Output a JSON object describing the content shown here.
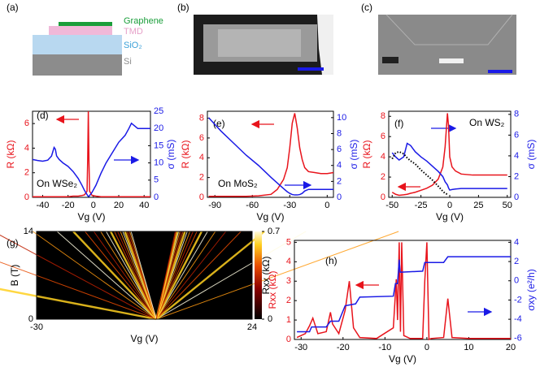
{
  "panels": {
    "a": {
      "label": "(a)",
      "layers": [
        "Graphene",
        "TMD",
        "SiO₂",
        "Si"
      ]
    },
    "b": {
      "label": "(b)"
    },
    "c": {
      "label": "(c)"
    }
  },
  "chart_data": [
    {
      "type": "line",
      "panel": "(d)",
      "annotation": "On WSe₂",
      "xlabel": "Vg (V)",
      "ylabel": "R (kΩ)",
      "y2label": "σ (mS)",
      "xlim": [
        -48,
        45
      ],
      "xticks": [
        -40,
        -20,
        0,
        20,
        40
      ],
      "ylim": [
        0,
        7
      ],
      "yticks": [
        0,
        2,
        4,
        6
      ],
      "y2lim": [
        0,
        25
      ],
      "y2ticks": [
        0,
        5,
        10,
        15,
        20,
        25
      ],
      "x": [
        -48,
        -44,
        -40,
        -36,
        -33,
        -31,
        -30,
        -29,
        -27,
        -24,
        -20,
        -16,
        -12,
        -9,
        -7,
        -5,
        -4.5,
        -4,
        -3.5,
        -3,
        -1,
        2,
        6,
        10,
        15,
        20,
        25,
        28,
        30,
        35,
        40,
        45
      ],
      "series": [
        {
          "name": "R",
          "color": "#e8141c",
          "values": [
            0.05,
            0.05,
            0.05,
            0.05,
            0.05,
            0.05,
            0.05,
            0.05,
            0.05,
            0.05,
            0.05,
            0.1,
            0.1,
            0.15,
            0.2,
            0.5,
            3,
            7,
            3,
            0.5,
            0.15,
            0.1,
            0.05,
            0.05,
            0.05,
            0.05,
            0.05,
            0.05,
            0.05,
            0.05,
            0.05,
            0.05
          ]
        },
        {
          "name": "σ",
          "color": "#1a1ae6",
          "axis": "y2",
          "values": [
            11,
            10.7,
            10.5,
            10.8,
            12,
            14.5,
            14,
            12,
            11,
            10,
            9,
            7.5,
            5.5,
            3.5,
            2,
            0.8,
            0.5,
            0.3,
            0.3,
            0.5,
            1.5,
            3.5,
            7,
            10,
            13,
            16,
            18,
            20,
            21.5,
            20,
            20,
            20
          ]
        }
      ]
    },
    {
      "type": "line",
      "panel": "(e)",
      "annotation": "On MoS₂",
      "xlabel": "Vg (V)",
      "ylabel": "R (kΩ)",
      "y2label": "σ (mS)",
      "xlim": [
        -96,
        5
      ],
      "xticks": [
        -90,
        -60,
        -30,
        0
      ],
      "ylim": [
        0,
        8.7
      ],
      "yticks": [
        0,
        2,
        4,
        6,
        8
      ],
      "y2lim": [
        0,
        10.8
      ],
      "y2ticks": [
        0,
        2,
        4,
        6,
        8,
        10
      ],
      "x": [
        -95,
        -85,
        -75,
        -65,
        -55,
        -45,
        -40,
        -35,
        -32,
        -30,
        -28,
        -26,
        -24,
        -22,
        -20,
        -18,
        -15,
        -10,
        -5,
        0,
        5
      ],
      "series": [
        {
          "name": "R",
          "color": "#e8141c",
          "values": [
            0.1,
            0.1,
            0.1,
            0.1,
            0.15,
            0.3,
            0.8,
            1.8,
            3,
            5,
            7.5,
            8.5,
            7,
            5,
            3.8,
            3,
            2.6,
            2.5,
            2.4,
            2.4,
            2.5
          ]
        },
        {
          "name": "σ",
          "color": "#1a1ae6",
          "axis": "y2",
          "values": [
            10,
            8.3,
            6.8,
            5.3,
            4,
            2.5,
            1.8,
            1.1,
            0.7,
            0.5,
            0.35,
            0.3,
            0.3,
            0.35,
            0.5,
            0.8,
            1,
            1,
            1,
            1,
            1
          ]
        }
      ]
    },
    {
      "type": "line",
      "panel": "(f)",
      "annotation": "On WS₂",
      "xlabel": "Vg (V)",
      "ylabel": "R (kΩ)",
      "y2label": "σ (mS)",
      "xlim": [
        -53,
        53
      ],
      "xticks": [
        -50,
        -25,
        0,
        25,
        50
      ],
      "ylim": [
        0,
        8.5
      ],
      "yticks": [
        0,
        2,
        4,
        6,
        8
      ],
      "y2lim": [
        0,
        8.3
      ],
      "y2ticks": [
        0,
        2,
        4,
        6,
        8
      ],
      "x": [
        -50,
        -47,
        -44,
        -40,
        -37,
        -34,
        -30,
        -25,
        -20,
        -15,
        -10,
        -6,
        -4,
        -2,
        -1,
        0,
        2,
        5,
        10,
        20,
        30,
        40,
        50
      ],
      "series": [
        {
          "name": "R",
          "color": "#e8141c",
          "values": [
            0.5,
            0.3,
            0.2,
            0.25,
            0.3,
            0.4,
            0.5,
            0.7,
            0.9,
            1.2,
            1.8,
            3,
            5,
            8.3,
            7,
            4,
            3,
            2.6,
            2.3,
            2.2,
            2.2,
            2.2,
            2.2
          ]
        },
        {
          "name": "σ",
          "color": "#1a1ae6",
          "axis": "y2",
          "values": [
            4.3,
            3.9,
            3.6,
            3.9,
            5.2,
            5,
            4.4,
            3.9,
            3.5,
            3,
            2.5,
            2,
            1.5,
            1.2,
            0.9,
            0.7,
            0.75,
            0.8,
            0.85,
            0.85,
            0.85,
            0.85,
            0.85
          ]
        },
        {
          "name": "R (dots)",
          "color": "#000000",
          "dash": "dotted",
          "values": [
            3.8,
            4.4,
            4.5,
            4.3,
            3.9,
            3.6,
            3.3,
            2.7,
            2.2,
            1.7,
            1.1,
            0.6,
            0.4,
            0.3,
            null,
            null,
            null,
            null,
            null,
            null,
            null,
            null,
            null
          ]
        }
      ]
    },
    {
      "type": "heatmap",
      "panel": "(g)",
      "xlabel": "Vg (V)",
      "ylabel": "B (T)",
      "colorbar_label": "Rxx (kΩ)",
      "xlim": [
        -30,
        24
      ],
      "xticks": [
        -30,
        24
      ],
      "ylim": [
        0,
        14
      ],
      "yticks": [
        0,
        14
      ],
      "clim": [
        0,
        0.7
      ],
      "cticks": [
        0,
        0.7
      ]
    },
    {
      "type": "line",
      "panel": "(h)",
      "xlabel": "Vg (V)",
      "ylabel": "Rxx (kΩ)",
      "y2label": "σxy (e²/h)",
      "xlim": [
        -31.6,
        20
      ],
      "xticks": [
        -30,
        -20,
        -10,
        0,
        10,
        20
      ],
      "ylim": [
        0,
        5.1
      ],
      "yticks": [
        0,
        1,
        2,
        3,
        4,
        5
      ],
      "y2lim": [
        -6.1,
        4.2
      ],
      "y2ticks": [
        -6,
        -4,
        -2,
        0,
        2,
        4
      ],
      "series": [
        {
          "name": "Rxx",
          "color": "#e8141c",
          "x": [
            -31,
            -29,
            -28,
            -27.2,
            -26,
            -24,
            -23,
            -22.5,
            -21,
            -19.5,
            -18.5,
            -17.5,
            -16,
            -12,
            -8,
            -7.3,
            -7,
            -6.6,
            -6.3,
            -6,
            -5.5,
            -4,
            -1,
            -0.5,
            0,
            0.5,
            1,
            4,
            5,
            6,
            10,
            15,
            20
          ],
          "values": [
            0.1,
            0.3,
            0.7,
            1.1,
            0.3,
            0.4,
            1.4,
            0.8,
            0.3,
            1.5,
            3.0,
            0.6,
            0.1,
            0.05,
            0.6,
            3.1,
            1,
            5,
            0.4,
            5,
            0.2,
            0.05,
            0.05,
            3,
            5,
            0,
            0.05,
            0.1,
            2.1,
            0.1,
            0.05,
            0.05,
            0.05
          ]
        },
        {
          "name": "σxy",
          "color": "#1a1ae6",
          "axis": "y2",
          "x": [
            -31,
            -28,
            -27.5,
            -24,
            -23,
            -21,
            -19.5,
            -17,
            -16,
            -8,
            -7.5,
            -7,
            -6.6,
            -6.4,
            -6,
            -1,
            -0.5,
            4,
            5,
            20
          ],
          "values": [
            -5.3,
            -5.3,
            -4.8,
            -4.8,
            -4.2,
            -4.2,
            -2.6,
            -2.4,
            -1.7,
            -1.6,
            -0.3,
            -0.3,
            2.2,
            0.9,
            0.9,
            1,
            1.9,
            1.9,
            2.5,
            2.5
          ]
        }
      ]
    }
  ]
}
